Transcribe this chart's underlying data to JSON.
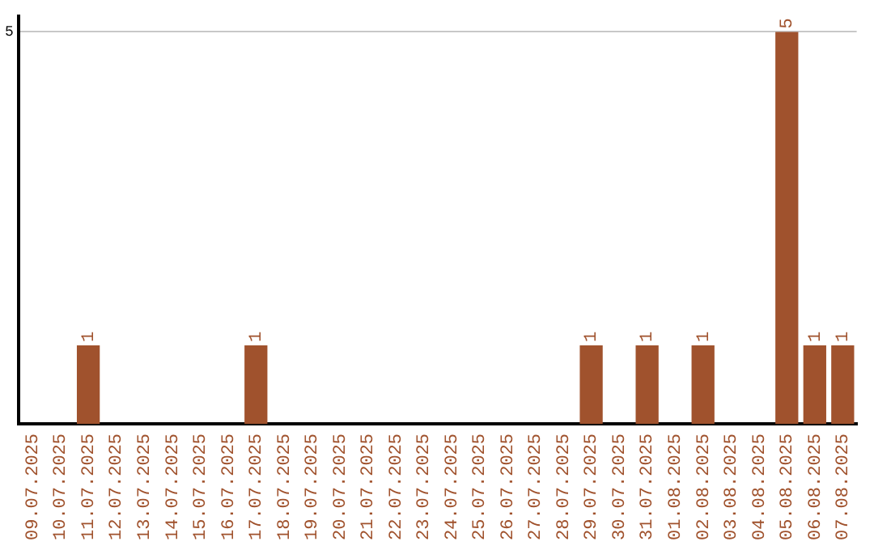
{
  "chart_data": {
    "type": "bar",
    "categories": [
      "09.07.2025",
      "10.07.2025",
      "11.07.2025",
      "12.07.2025",
      "13.07.2025",
      "14.07.2025",
      "15.07.2025",
      "16.07.2025",
      "17.07.2025",
      "18.07.2025",
      "19.07.2025",
      "20.07.2025",
      "21.07.2025",
      "22.07.2025",
      "23.07.2025",
      "24.07.2025",
      "25.07.2025",
      "26.07.2025",
      "27.07.2025",
      "28.07.2025",
      "29.07.2025",
      "30.07.2025",
      "31.07.2025",
      "01.08.2025",
      "02.08.2025",
      "03.08.2025",
      "04.08.2025",
      "05.08.2025",
      "06.08.2025",
      "07.08.2025"
    ],
    "values": [
      0,
      0,
      1,
      0,
      0,
      0,
      0,
      0,
      1,
      0,
      0,
      0,
      0,
      0,
      0,
      0,
      0,
      0,
      0,
      0,
      1,
      0,
      1,
      0,
      1,
      0,
      0,
      5,
      1,
      1
    ],
    "value_labels": [
      null,
      null,
      "1",
      null,
      null,
      null,
      null,
      null,
      "1",
      null,
      null,
      null,
      null,
      null,
      null,
      null,
      null,
      null,
      null,
      null,
      "1",
      null,
      "1",
      null,
      "1",
      null,
      null,
      "5",
      "1",
      "1"
    ],
    "color": "#a0522d",
    "ylim": [
      0,
      5.2
    ],
    "yticks": [
      5
    ],
    "grid": "y",
    "legend": false
  }
}
